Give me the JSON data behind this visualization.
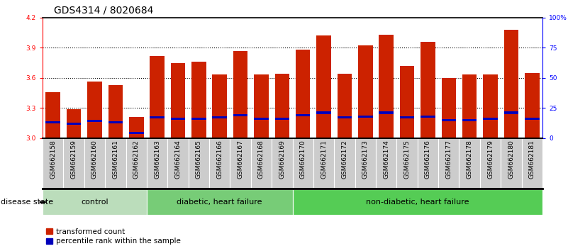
{
  "title": "GDS4314 / 8020684",
  "samples": [
    "GSM662158",
    "GSM662159",
    "GSM662160",
    "GSM662161",
    "GSM662162",
    "GSM662163",
    "GSM662164",
    "GSM662165",
    "GSM662166",
    "GSM662167",
    "GSM662168",
    "GSM662169",
    "GSM662170",
    "GSM662171",
    "GSM662172",
    "GSM662173",
    "GSM662174",
    "GSM662175",
    "GSM662176",
    "GSM662177",
    "GSM662178",
    "GSM662179",
    "GSM662180",
    "GSM662181"
  ],
  "red_values": [
    3.46,
    3.29,
    3.56,
    3.53,
    3.21,
    3.82,
    3.75,
    3.76,
    3.63,
    3.87,
    3.63,
    3.64,
    3.88,
    4.02,
    3.64,
    3.92,
    4.03,
    3.72,
    3.96,
    3.6,
    3.63,
    3.63,
    4.08,
    3.65
  ],
  "blue_values_pct": [
    13,
    12,
    14,
    13,
    4,
    17,
    16,
    16,
    17,
    19,
    16,
    16,
    19,
    21,
    17,
    18,
    21,
    17,
    18,
    15,
    15,
    16,
    21,
    16
  ],
  "groups": [
    {
      "label": "control",
      "start": 0,
      "end": 5,
      "color": "#bbddbb"
    },
    {
      "label": "diabetic, heart failure",
      "start": 5,
      "end": 12,
      "color": "#77cc77"
    },
    {
      "label": "non-diabetic, heart failure",
      "start": 12,
      "end": 24,
      "color": "#55cc55"
    }
  ],
  "ymin": 3.0,
  "ymax": 4.2,
  "yticks_left": [
    3.0,
    3.3,
    3.6,
    3.9,
    4.2
  ],
  "grid_lines": [
    3.3,
    3.6,
    3.9
  ],
  "yticks_right_pct": [
    0,
    25,
    50,
    75,
    100
  ],
  "bar_color_red": "#cc2200",
  "bar_color_blue": "#0000bb",
  "background_plot": "#ffffff",
  "tick_label_bg": "#cccccc",
  "disease_state_label": "disease state",
  "legend_red": "transformed count",
  "legend_blue": "percentile rank within the sample",
  "bar_width": 0.7,
  "title_fontsize": 10,
  "tick_fontsize": 6.5,
  "label_fontsize": 8,
  "legend_fontsize": 7.5
}
